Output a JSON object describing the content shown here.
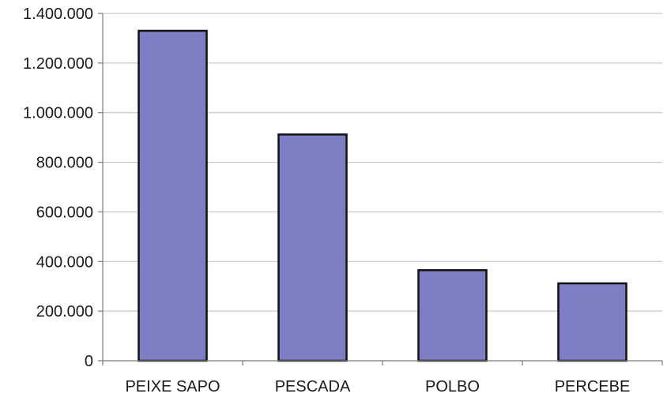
{
  "chart_data": {
    "type": "bar",
    "title": "",
    "xlabel": "",
    "ylabel": "",
    "categories": [
      "PEIXE SAPO",
      "PESCADA",
      "POLBO",
      "PERCEBE"
    ],
    "values": [
      1330000,
      912000,
      365000,
      312000
    ],
    "ylim": [
      0,
      1400000
    ],
    "yticks": [
      0,
      200000,
      400000,
      600000,
      800000,
      1000000,
      1200000,
      1400000
    ],
    "ytick_labels": [
      "0",
      "200.000",
      "400.000",
      "600.000",
      "800.000",
      "1.000.000",
      "1.200.000",
      "1.400.000"
    ],
    "grid": true,
    "legend": "none",
    "bar_color": "#7e7ec4",
    "bar_edge_color": "#111111"
  }
}
